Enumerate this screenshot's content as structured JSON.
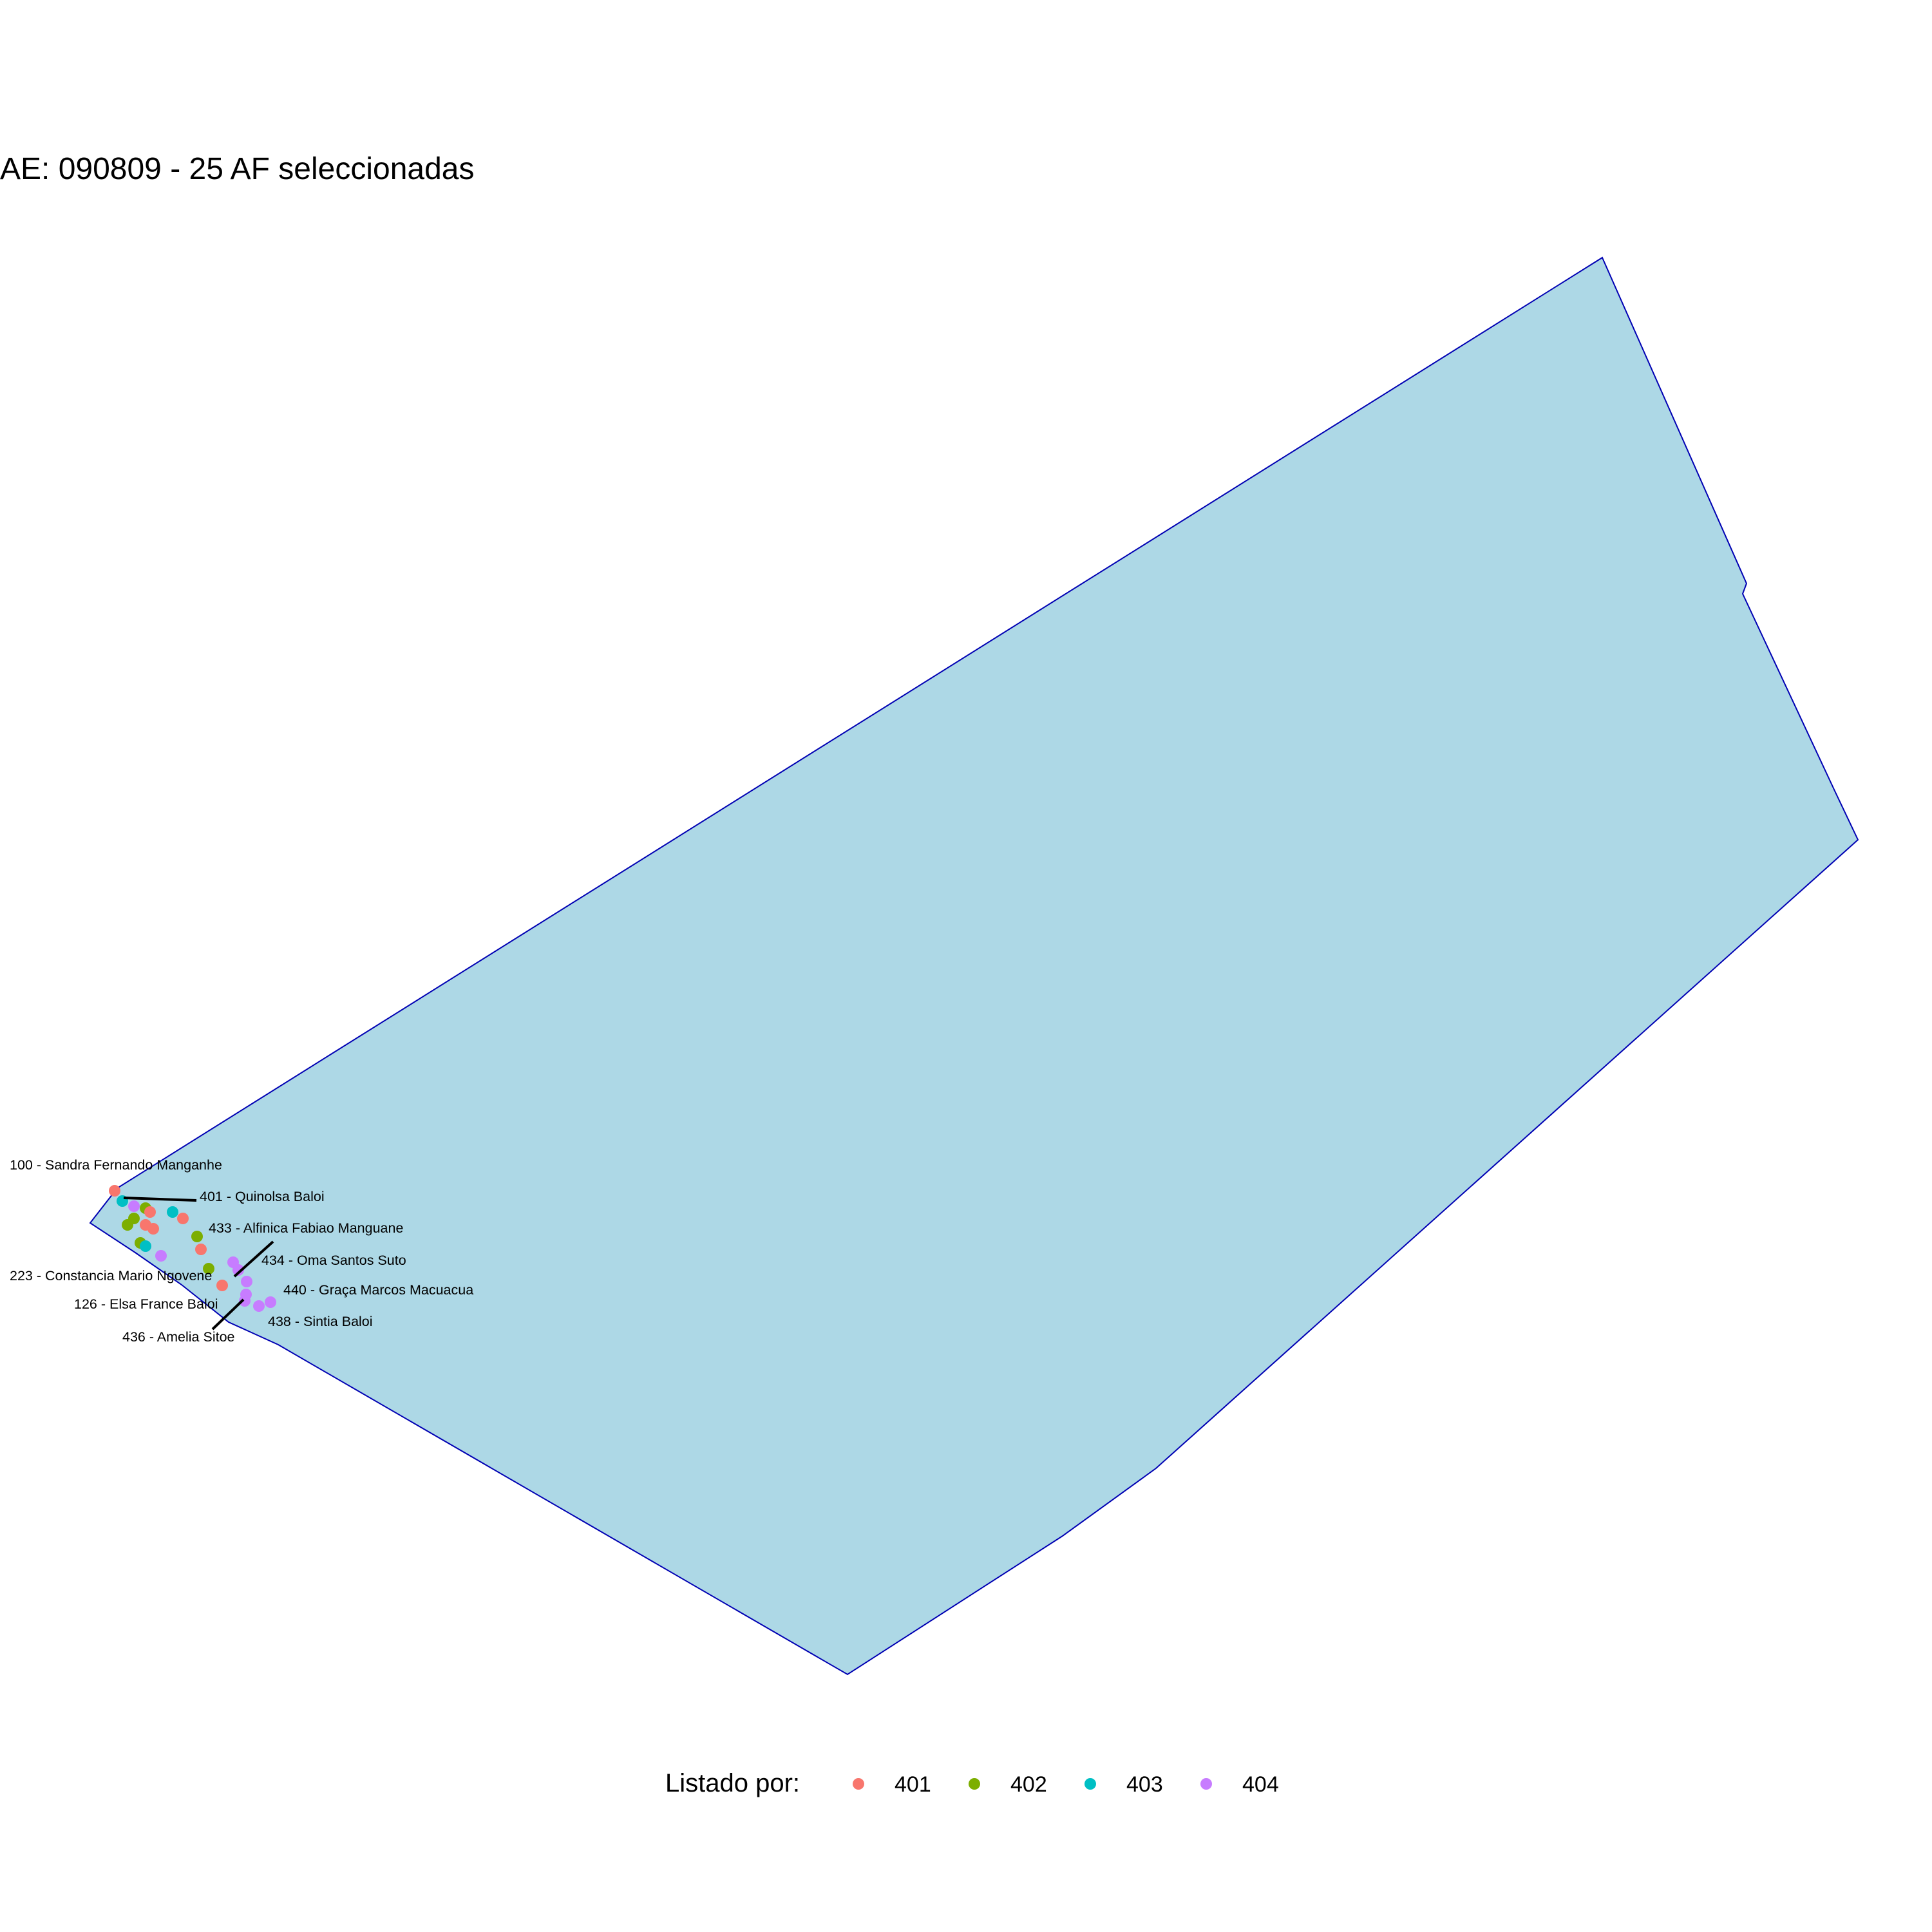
{
  "title": "AE: 090809 - 25  AF seleccionadas",
  "area": {
    "fill": "#add8e6",
    "stroke": "#0000b3"
  },
  "legend": {
    "title": "Listado por:",
    "items": [
      {
        "label": "401",
        "color": "#f8766d"
      },
      {
        "label": "402",
        "color": "#7cae00"
      },
      {
        "label": "403",
        "color": "#00bfc4"
      },
      {
        "label": "404",
        "color": "#c77cff"
      }
    ]
  },
  "labels": [
    "100 - Sandra Fernando Manganhe",
    "401 - Quinolsa Baloi",
    "433 - Alfinica Fabiao Manguane",
    "223 - Constancia Mario  Ngovene",
    "434 - Oma Santos Suto",
    "440 - Graça Marcos Macuacua",
    "126 - Elsa France Baloi",
    "438 - Sintia Baloi",
    "436 - Amelia Sitoe"
  ]
}
